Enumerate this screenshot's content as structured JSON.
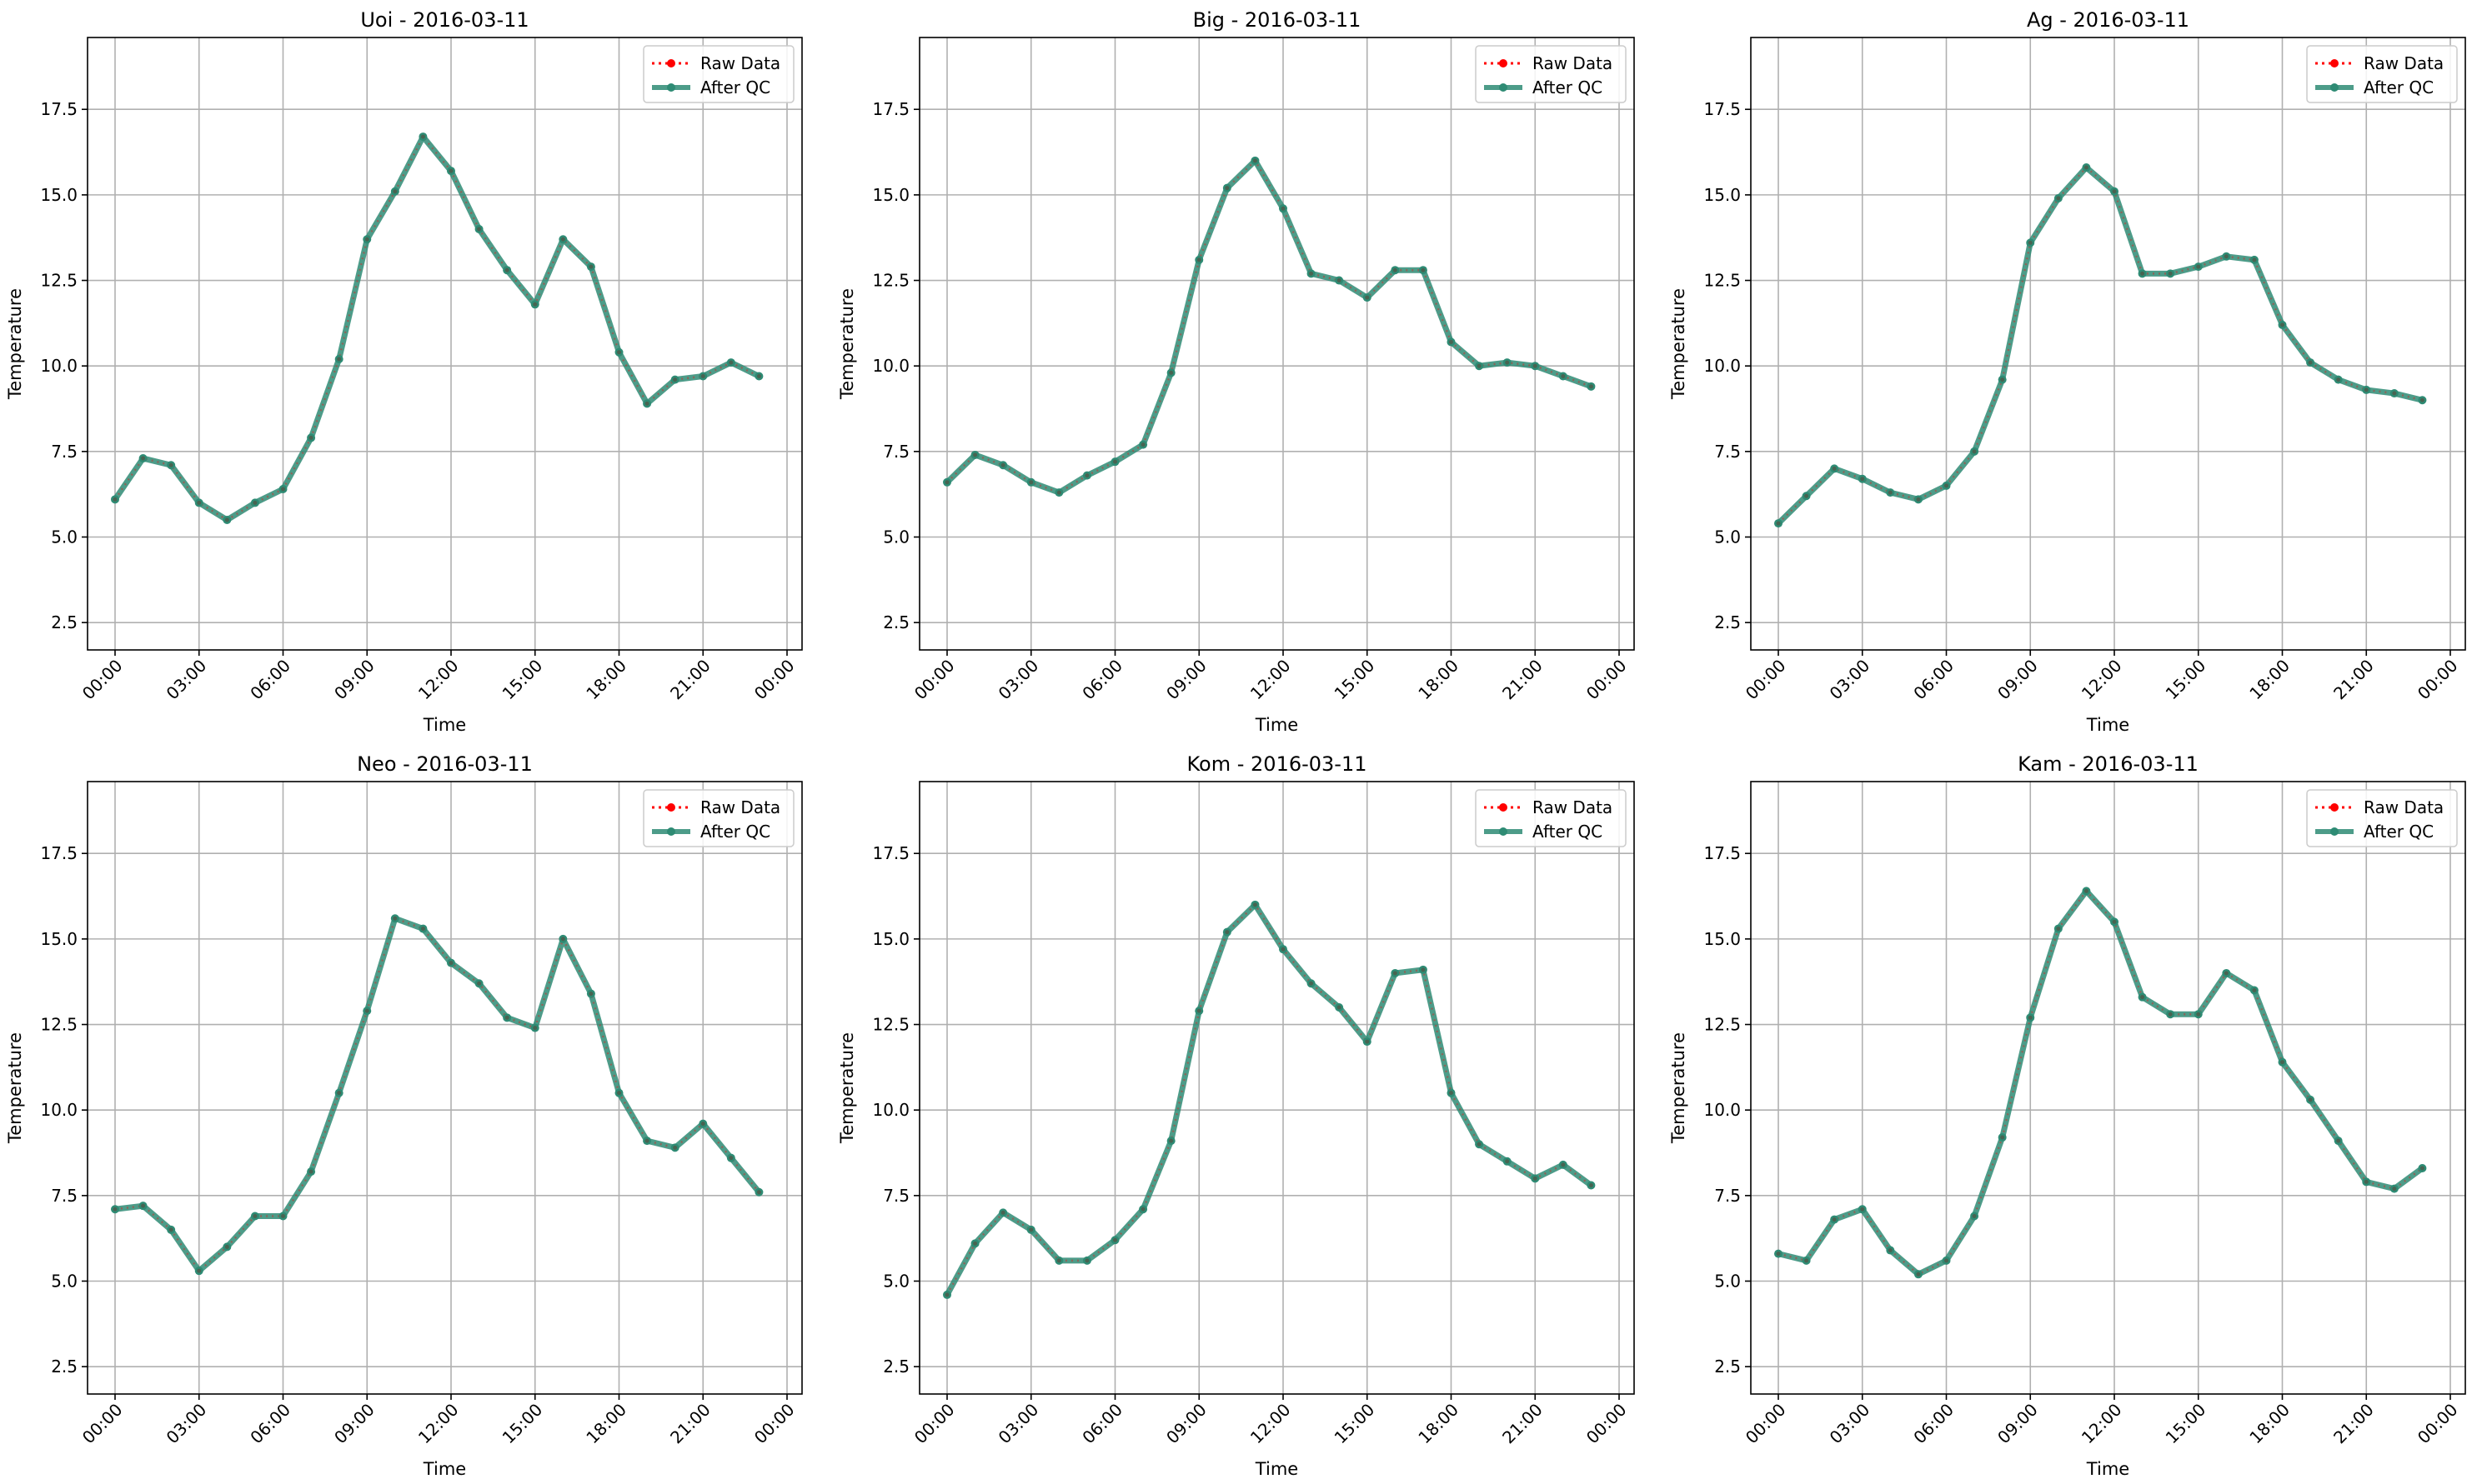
{
  "figure": {
    "colors": {
      "raw": "#ff0000",
      "qc": "#2e8b74",
      "grid": "#b0b0b0",
      "axis": "#000000"
    }
  },
  "chart_data": [
    {
      "type": "line",
      "title": "Uoi - 2016-03-11",
      "xlabel": "Time",
      "ylabel": "Temperature",
      "xlim": [
        0,
        24
      ],
      "ylim": [
        1.7,
        19.6
      ],
      "xticks": [
        0,
        3,
        6,
        9,
        12,
        15,
        18,
        21,
        24
      ],
      "xtick_labels": [
        "00:00",
        "03:00",
        "06:00",
        "09:00",
        "12:00",
        "15:00",
        "18:00",
        "21:00",
        "00:00"
      ],
      "yticks": [
        2.5,
        5.0,
        7.5,
        10.0,
        12.5,
        15.0,
        17.5
      ],
      "ytick_labels": [
        "2.5",
        "5.0",
        "7.5",
        "10.0",
        "12.5",
        "15.0",
        "17.5"
      ],
      "grid": true,
      "legend": {
        "position": "top-right",
        "entries": [
          "Raw Data",
          "After QC"
        ]
      },
      "x": [
        0,
        1,
        2,
        3,
        4,
        5,
        6,
        7,
        8,
        9,
        10,
        11,
        12,
        13,
        14,
        15,
        16,
        17,
        18,
        19,
        20,
        21,
        22,
        23
      ],
      "series": [
        {
          "name": "Raw Data",
          "values": [
            6.1,
            7.3,
            7.1,
            6.0,
            5.5,
            6.0,
            6.4,
            7.9,
            10.2,
            13.7,
            15.1,
            16.7,
            15.7,
            14.0,
            12.8,
            11.8,
            13.7,
            12.9,
            10.4,
            8.9,
            9.6,
            9.7,
            10.1,
            9.7
          ]
        },
        {
          "name": "After QC",
          "values": [
            6.1,
            7.3,
            7.1,
            6.0,
            5.5,
            6.0,
            6.4,
            7.9,
            10.2,
            13.7,
            15.1,
            16.7,
            15.7,
            14.0,
            12.8,
            11.8,
            13.7,
            12.9,
            10.4,
            8.9,
            9.6,
            9.7,
            10.1,
            9.7
          ]
        }
      ]
    },
    {
      "type": "line",
      "title": "Big - 2016-03-11",
      "xlabel": "Time",
      "ylabel": "Temperature",
      "xlim": [
        0,
        24
      ],
      "ylim": [
        1.7,
        19.6
      ],
      "xticks": [
        0,
        3,
        6,
        9,
        12,
        15,
        18,
        21,
        24
      ],
      "xtick_labels": [
        "00:00",
        "03:00",
        "06:00",
        "09:00",
        "12:00",
        "15:00",
        "18:00",
        "21:00",
        "00:00"
      ],
      "yticks": [
        2.5,
        5.0,
        7.5,
        10.0,
        12.5,
        15.0,
        17.5
      ],
      "ytick_labels": [
        "2.5",
        "5.0",
        "7.5",
        "10.0",
        "12.5",
        "15.0",
        "17.5"
      ],
      "grid": true,
      "legend": {
        "position": "top-right",
        "entries": [
          "Raw Data",
          "After QC"
        ]
      },
      "x": [
        0,
        1,
        2,
        3,
        4,
        5,
        6,
        7,
        8,
        9,
        10,
        11,
        12,
        13,
        14,
        15,
        16,
        17,
        18,
        19,
        20,
        21,
        22,
        23
      ],
      "series": [
        {
          "name": "Raw Data",
          "values": [
            6.6,
            7.4,
            7.1,
            6.6,
            6.3,
            6.8,
            7.2,
            7.7,
            9.8,
            13.1,
            15.2,
            16.0,
            14.6,
            12.7,
            12.5,
            12.0,
            12.8,
            12.8,
            10.7,
            10.0,
            10.1,
            10.0,
            9.7,
            9.4
          ]
        },
        {
          "name": "After QC",
          "values": [
            6.6,
            7.4,
            7.1,
            6.6,
            6.3,
            6.8,
            7.2,
            7.7,
            9.8,
            13.1,
            15.2,
            16.0,
            14.6,
            12.7,
            12.5,
            12.0,
            12.8,
            12.8,
            10.7,
            10.0,
            10.1,
            10.0,
            9.7,
            9.4
          ]
        }
      ]
    },
    {
      "type": "line",
      "title": "Ag - 2016-03-11",
      "xlabel": "Time",
      "ylabel": "Temperature",
      "xlim": [
        0,
        24
      ],
      "ylim": [
        1.7,
        19.6
      ],
      "xticks": [
        0,
        3,
        6,
        9,
        12,
        15,
        18,
        21,
        24
      ],
      "xtick_labels": [
        "00:00",
        "03:00",
        "06:00",
        "09:00",
        "12:00",
        "15:00",
        "18:00",
        "21:00",
        "00:00"
      ],
      "yticks": [
        2.5,
        5.0,
        7.5,
        10.0,
        12.5,
        15.0,
        17.5
      ],
      "ytick_labels": [
        "2.5",
        "5.0",
        "7.5",
        "10.0",
        "12.5",
        "15.0",
        "17.5"
      ],
      "grid": true,
      "legend": {
        "position": "top-right",
        "entries": [
          "Raw Data",
          "After QC"
        ]
      },
      "x": [
        0,
        1,
        2,
        3,
        4,
        5,
        6,
        7,
        8,
        9,
        10,
        11,
        12,
        13,
        14,
        15,
        16,
        17,
        18,
        19,
        20,
        21,
        22,
        23
      ],
      "series": [
        {
          "name": "Raw Data",
          "values": [
            5.4,
            6.2,
            7.0,
            6.7,
            6.3,
            6.1,
            6.5,
            7.5,
            9.6,
            13.6,
            14.9,
            15.8,
            15.1,
            12.7,
            12.7,
            12.9,
            13.2,
            13.1,
            11.2,
            10.1,
            9.6,
            9.3,
            9.2,
            9.0
          ]
        },
        {
          "name": "After QC",
          "values": [
            5.4,
            6.2,
            7.0,
            6.7,
            6.3,
            6.1,
            6.5,
            7.5,
            9.6,
            13.6,
            14.9,
            15.8,
            15.1,
            12.7,
            12.7,
            12.9,
            13.2,
            13.1,
            11.2,
            10.1,
            9.6,
            9.3,
            9.2,
            9.0
          ]
        }
      ]
    },
    {
      "type": "line",
      "title": "Neo - 2016-03-11",
      "xlabel": "Time",
      "ylabel": "Temperature",
      "xlim": [
        0,
        24
      ],
      "ylim": [
        1.7,
        19.6
      ],
      "xticks": [
        0,
        3,
        6,
        9,
        12,
        15,
        18,
        21,
        24
      ],
      "xtick_labels": [
        "00:00",
        "03:00",
        "06:00",
        "09:00",
        "12:00",
        "15:00",
        "18:00",
        "21:00",
        "00:00"
      ],
      "yticks": [
        2.5,
        5.0,
        7.5,
        10.0,
        12.5,
        15.0,
        17.5
      ],
      "ytick_labels": [
        "2.5",
        "5.0",
        "7.5",
        "10.0",
        "12.5",
        "15.0",
        "17.5"
      ],
      "grid": true,
      "legend": {
        "position": "top-right",
        "entries": [
          "Raw Data",
          "After QC"
        ]
      },
      "x": [
        0,
        1,
        2,
        3,
        4,
        5,
        6,
        7,
        8,
        9,
        10,
        11,
        12,
        13,
        14,
        15,
        16,
        17,
        18,
        19,
        20,
        21,
        22,
        23
      ],
      "series": [
        {
          "name": "Raw Data",
          "values": [
            7.1,
            7.2,
            6.5,
            5.3,
            6.0,
            6.9,
            6.9,
            8.2,
            10.5,
            12.9,
            15.6,
            15.3,
            14.3,
            13.7,
            12.7,
            12.4,
            15.0,
            13.4,
            10.5,
            9.1,
            8.9,
            9.6,
            8.6,
            7.6
          ]
        },
        {
          "name": "After QC",
          "values": [
            7.1,
            7.2,
            6.5,
            5.3,
            6.0,
            6.9,
            6.9,
            8.2,
            10.5,
            12.9,
            15.6,
            15.3,
            14.3,
            13.7,
            12.7,
            12.4,
            15.0,
            13.4,
            10.5,
            9.1,
            8.9,
            9.6,
            8.6,
            7.6
          ]
        }
      ]
    },
    {
      "type": "line",
      "title": "Kom - 2016-03-11",
      "xlabel": "Time",
      "ylabel": "Temperature",
      "xlim": [
        0,
        24
      ],
      "ylim": [
        1.7,
        19.6
      ],
      "xticks": [
        0,
        3,
        6,
        9,
        12,
        15,
        18,
        21,
        24
      ],
      "xtick_labels": [
        "00:00",
        "03:00",
        "06:00",
        "09:00",
        "12:00",
        "15:00",
        "18:00",
        "21:00",
        "00:00"
      ],
      "yticks": [
        2.5,
        5.0,
        7.5,
        10.0,
        12.5,
        15.0,
        17.5
      ],
      "ytick_labels": [
        "2.5",
        "5.0",
        "7.5",
        "10.0",
        "12.5",
        "15.0",
        "17.5"
      ],
      "grid": true,
      "legend": {
        "position": "top-right",
        "entries": [
          "Raw Data",
          "After QC"
        ]
      },
      "x": [
        0,
        1,
        2,
        3,
        4,
        5,
        6,
        7,
        8,
        9,
        10,
        11,
        12,
        13,
        14,
        15,
        16,
        17,
        18,
        19,
        20,
        21,
        22,
        23
      ],
      "series": [
        {
          "name": "Raw Data",
          "values": [
            4.6,
            6.1,
            7.0,
            6.5,
            5.6,
            5.6,
            6.2,
            7.1,
            9.1,
            12.9,
            15.2,
            16.0,
            14.7,
            13.7,
            13.0,
            12.0,
            14.0,
            14.1,
            10.5,
            9.0,
            8.5,
            8.0,
            8.4,
            7.8
          ]
        },
        {
          "name": "After QC",
          "values": [
            4.6,
            6.1,
            7.0,
            6.5,
            5.6,
            5.6,
            6.2,
            7.1,
            9.1,
            12.9,
            15.2,
            16.0,
            14.7,
            13.7,
            13.0,
            12.0,
            14.0,
            14.1,
            10.5,
            9.0,
            8.5,
            8.0,
            8.4,
            7.8
          ]
        }
      ]
    },
    {
      "type": "line",
      "title": "Kam - 2016-03-11",
      "xlabel": "Time",
      "ylabel": "Temperature",
      "xlim": [
        0,
        24
      ],
      "ylim": [
        1.7,
        19.6
      ],
      "xticks": [
        0,
        3,
        6,
        9,
        12,
        15,
        18,
        21,
        24
      ],
      "xtick_labels": [
        "00:00",
        "03:00",
        "06:00",
        "09:00",
        "12:00",
        "15:00",
        "18:00",
        "21:00",
        "00:00"
      ],
      "yticks": [
        2.5,
        5.0,
        7.5,
        10.0,
        12.5,
        15.0,
        17.5
      ],
      "ytick_labels": [
        "2.5",
        "5.0",
        "7.5",
        "10.0",
        "12.5",
        "15.0",
        "17.5"
      ],
      "grid": true,
      "legend": {
        "position": "top-right",
        "entries": [
          "Raw Data",
          "After QC"
        ]
      },
      "x": [
        0,
        1,
        2,
        3,
        4,
        5,
        6,
        7,
        8,
        9,
        10,
        11,
        12,
        13,
        14,
        15,
        16,
        17,
        18,
        19,
        20,
        21,
        22,
        23
      ],
      "series": [
        {
          "name": "Raw Data",
          "values": [
            5.8,
            5.6,
            6.8,
            7.1,
            5.9,
            5.2,
            5.6,
            6.9,
            9.2,
            12.7,
            15.3,
            16.4,
            15.5,
            13.3,
            12.8,
            12.8,
            14.0,
            13.5,
            11.4,
            10.3,
            9.1,
            7.9,
            7.7,
            8.3
          ]
        },
        {
          "name": "After QC",
          "values": [
            5.8,
            5.6,
            6.8,
            7.1,
            5.9,
            5.2,
            5.6,
            6.9,
            9.2,
            12.7,
            15.3,
            16.4,
            15.5,
            13.3,
            12.8,
            12.8,
            14.0,
            13.5,
            11.4,
            10.3,
            9.1,
            7.9,
            7.7,
            8.3
          ]
        }
      ]
    }
  ]
}
